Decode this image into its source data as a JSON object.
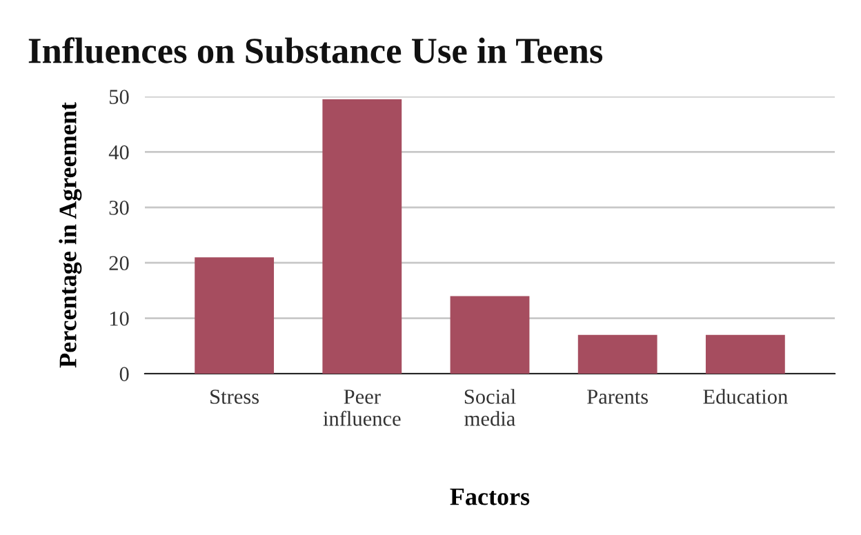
{
  "chart_data": {
    "type": "bar",
    "title": "Influences on Substance Use in Teens",
    "xlabel": "Factors",
    "ylabel": "Percentage in Agreement",
    "categories": [
      "Stress",
      "Peer\ninfluence",
      "Social\nmedia",
      "Parents",
      "Education"
    ],
    "values": [
      21,
      49.5,
      14,
      7,
      7
    ],
    "color": "#a64d5f",
    "ylim": [
      0,
      50
    ],
    "yticks": [
      0,
      10,
      20,
      30,
      40,
      50
    ],
    "grid": "y"
  }
}
